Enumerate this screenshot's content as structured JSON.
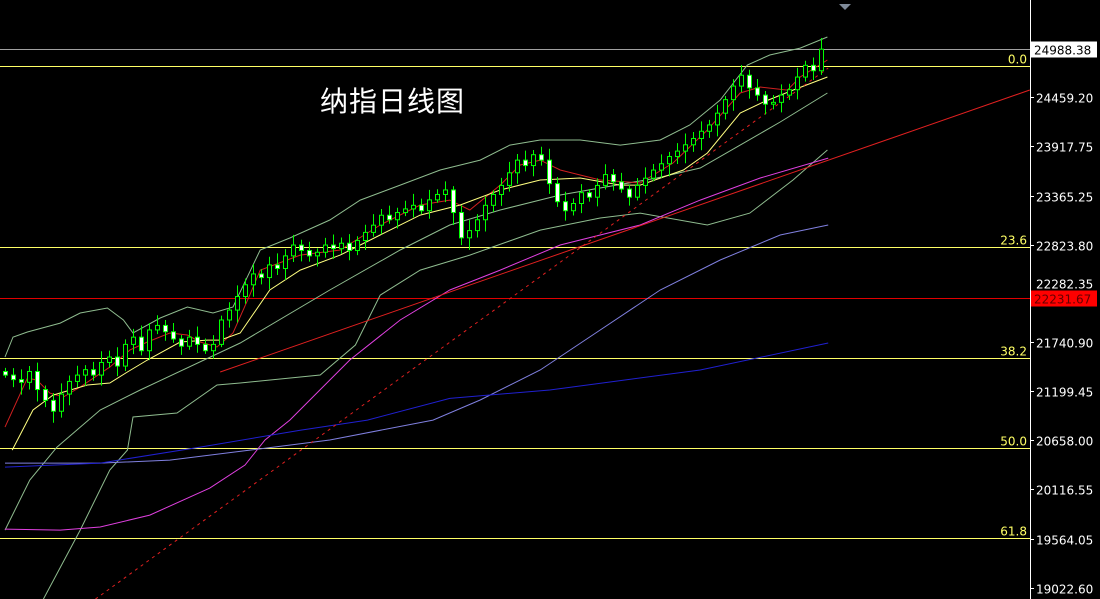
{
  "chart_data": {
    "type": "candlestick",
    "title": "纳指日线图",
    "yaxis": {
      "range": [
        19022.6,
        24988.38
      ],
      "ticks": [
        "24459.20",
        "23917.75",
        "23365.25",
        "22823.80",
        "22282.35",
        "21740.90",
        "21199.45",
        "20658.00",
        "20116.55",
        "19564.05",
        "19022.60"
      ],
      "tick_values": [
        24459.2,
        23917.75,
        23365.25,
        22823.8,
        22282.35,
        21740.9,
        21199.45,
        20658.0,
        20116.55,
        19564.05,
        19022.6
      ],
      "position": "right"
    },
    "grid": false,
    "colors": {
      "background": "#000000",
      "candle_outline": "#00ff00",
      "bull_body": "#000000",
      "bear_body": "#ffffff",
      "fib": "#ffff66",
      "current_price_line": "#a0a0a0",
      "red_level": "#e00000",
      "axis": "#ffffff"
    },
    "first_open": 21420,
    "closes": [
      21380,
      21330,
      21300,
      21420,
      21220,
      21100,
      20980,
      21170,
      21310,
      21380,
      21440,
      21380,
      21520,
      21580,
      21480,
      21720,
      21800,
      21650,
      21880,
      21930,
      21860,
      21780,
      21700,
      21800,
      21720,
      21650,
      21720,
      21990,
      22100,
      22250,
      22380,
      22500,
      22460,
      22600,
      22560,
      22700,
      22820,
      22760,
      22700,
      22740,
      22820,
      22780,
      22840,
      22760,
      22870,
      22960,
      23040,
      23150,
      23100,
      23180,
      23220,
      23260,
      23200,
      23320,
      23380,
      23430,
      23180,
      22900,
      22980,
      23100,
      23260,
      23380,
      23480,
      23620,
      23760,
      23700,
      23820,
      23760,
      23500,
      23300,
      23200,
      23280,
      23400,
      23350,
      23480,
      23600,
      23520,
      23440,
      23350,
      23480,
      23560,
      23650,
      23720,
      23800,
      23860,
      23930,
      24000,
      24080,
      24150,
      24280,
      24430,
      24580,
      24700,
      24560,
      24480,
      24380,
      24400,
      24480,
      24540,
      24680,
      24810,
      24750,
      24988.38
    ],
    "current_price": {
      "value": 24988.38,
      "label": "24988.38"
    },
    "red_level": {
      "value": 22231.67,
      "label": "22231.67"
    },
    "fib_levels": [
      {
        "label": "0.0",
        "value": 24802
      },
      {
        "label": "23.6",
        "value": 22798
      },
      {
        "label": "38.2",
        "value": 21569
      },
      {
        "label": "50.0",
        "value": 20573
      },
      {
        "label": "61.8",
        "value": 19576
      }
    ],
    "indicators": [
      {
        "id": "bb-upper",
        "color": "#8fbc8f",
        "dash": false,
        "points": [
          [
            0,
            21580
          ],
          [
            1,
            21801
          ],
          [
            2.8,
            21857
          ],
          [
            6.9,
            21956
          ],
          [
            9.4,
            22067
          ],
          [
            12.8,
            22123
          ],
          [
            14.8,
            21990
          ],
          [
            16,
            21846
          ],
          [
            19.4,
            22012
          ],
          [
            22.8,
            22134
          ],
          [
            26,
            22067
          ],
          [
            28.5,
            22134
          ],
          [
            31.9,
            22765
          ],
          [
            35.6,
            22898
          ],
          [
            40.6,
            23097
          ],
          [
            44.4,
            23318
          ],
          [
            49.4,
            23484
          ],
          [
            54.4,
            23651
          ],
          [
            59.4,
            23761
          ],
          [
            63.1,
            23927
          ],
          [
            66.9,
            23983
          ],
          [
            71.9,
            23983
          ],
          [
            76.9,
            23927
          ],
          [
            81.9,
            23983
          ],
          [
            85.6,
            24149
          ],
          [
            89.4,
            24426
          ],
          [
            92.8,
            24813
          ],
          [
            95.6,
            24924
          ],
          [
            99.4,
            25001
          ],
          [
            102.8,
            25123
          ]
        ]
      },
      {
        "id": "bb-middle",
        "color": "#8fbc8f",
        "dash": false,
        "points": [
          [
            0,
            19664
          ],
          [
            3.1,
            20218
          ],
          [
            6.5,
            20583
          ],
          [
            11.9,
            20993
          ],
          [
            16.9,
            21215
          ],
          [
            29.4,
            21735
          ],
          [
            40.6,
            22322
          ],
          [
            49.4,
            22765
          ],
          [
            55.6,
            23042
          ],
          [
            61.9,
            23208
          ],
          [
            69.4,
            23374
          ],
          [
            81.5,
            23562
          ],
          [
            86.9,
            23673
          ],
          [
            91.9,
            23927
          ],
          [
            96.9,
            24182
          ],
          [
            102.8,
            24503
          ]
        ]
      },
      {
        "id": "bb-lower",
        "color": "#8fbc8f",
        "dash": false,
        "points": [
          [
            4.8,
            18900
          ],
          [
            9.4,
            19664
          ],
          [
            13.1,
            20329
          ],
          [
            15.3,
            20550
          ],
          [
            16,
            20916
          ],
          [
            21.5,
            20960
          ],
          [
            26.5,
            21270
          ],
          [
            29.4,
            21292
          ],
          [
            39.4,
            21381
          ],
          [
            43.8,
            21713
          ],
          [
            46.9,
            22266
          ],
          [
            51.9,
            22543
          ],
          [
            58.1,
            22709
          ],
          [
            66.9,
            22986
          ],
          [
            74.4,
            23119
          ],
          [
            79.4,
            23174
          ],
          [
            87.8,
            23042
          ],
          [
            93.1,
            23174
          ],
          [
            98.5,
            23540
          ],
          [
            102.8,
            23872
          ]
        ]
      },
      {
        "id": "ma-red",
        "color": "#d02020",
        "dash": false,
        "points": [
          [
            0,
            20804
          ],
          [
            2.8,
            21347
          ],
          [
            4,
            21325
          ],
          [
            5.6,
            21181
          ],
          [
            7.3,
            21137
          ],
          [
            9.4,
            21248
          ],
          [
            13.1,
            21469
          ],
          [
            15.6,
            21657
          ],
          [
            17.8,
            21746
          ],
          [
            20.6,
            21846
          ],
          [
            22.8,
            21824
          ],
          [
            24.4,
            21746
          ],
          [
            26.5,
            21691
          ],
          [
            28.5,
            21846
          ],
          [
            30.6,
            22266
          ],
          [
            31.9,
            22543
          ],
          [
            36.9,
            22709
          ],
          [
            41.9,
            22765
          ],
          [
            46.9,
            23042
          ],
          [
            51.9,
            23263
          ],
          [
            55.6,
            23318
          ],
          [
            58.1,
            23208
          ],
          [
            61.9,
            23484
          ],
          [
            64.4,
            23706
          ],
          [
            66.9,
            23761
          ],
          [
            69.4,
            23651
          ],
          [
            74.4,
            23540
          ],
          [
            79.4,
            23507
          ],
          [
            83.5,
            23728
          ],
          [
            87.8,
            24094
          ],
          [
            91.9,
            24503
          ],
          [
            94.4,
            24570
          ],
          [
            97.8,
            24536
          ],
          [
            99.4,
            24681
          ],
          [
            102.8,
            24869
          ]
        ]
      },
      {
        "id": "ma-yellow",
        "color": "#ffff80",
        "dash": false,
        "points": [
          [
            0.9,
            20550
          ],
          [
            3.5,
            20993
          ],
          [
            6,
            21159
          ],
          [
            10.3,
            21270
          ],
          [
            13.1,
            21292
          ],
          [
            15.3,
            21414
          ],
          [
            17.8,
            21547
          ],
          [
            21.9,
            21746
          ],
          [
            25.3,
            21768
          ],
          [
            26.9,
            21768
          ],
          [
            29.4,
            21846
          ],
          [
            33.1,
            22322
          ],
          [
            36.9,
            22543
          ],
          [
            41.9,
            22709
          ],
          [
            46.9,
            22931
          ],
          [
            51.9,
            23152
          ],
          [
            56.9,
            23263
          ],
          [
            61.9,
            23429
          ],
          [
            66.9,
            23540
          ],
          [
            71.9,
            23562
          ],
          [
            76.9,
            23484
          ],
          [
            79.4,
            23484
          ],
          [
            84.8,
            23651
          ],
          [
            87.8,
            23839
          ],
          [
            91.9,
            24282
          ],
          [
            94.8,
            24404
          ],
          [
            98.5,
            24536
          ],
          [
            102.8,
            24681
          ]
        ]
      },
      {
        "id": "ma-magenta",
        "color": "#e040e0",
        "dash": false,
        "points": [
          [
            0,
            19675
          ],
          [
            6.9,
            19664
          ],
          [
            11.9,
            19698
          ],
          [
            18.1,
            19830
          ],
          [
            25.6,
            20129
          ],
          [
            30,
            20384
          ],
          [
            32.5,
            20661
          ],
          [
            35.6,
            20882
          ],
          [
            43.1,
            21547
          ],
          [
            49.4,
            21990
          ],
          [
            55.6,
            22322
          ],
          [
            61.9,
            22543
          ],
          [
            69.4,
            22820
          ],
          [
            79.4,
            23042
          ],
          [
            86.9,
            23318
          ],
          [
            94.4,
            23562
          ],
          [
            102.9,
            23783
          ]
        ]
      },
      {
        "id": "ma-lavender",
        "color": "#8080e0",
        "dash": false,
        "points": [
          [
            0,
            20406
          ],
          [
            11.9,
            20406
          ],
          [
            20.6,
            20439
          ],
          [
            30.6,
            20550
          ],
          [
            40.6,
            20661
          ],
          [
            53.5,
            20882
          ],
          [
            59.4,
            21104
          ],
          [
            66.9,
            21436
          ],
          [
            74.4,
            21879
          ],
          [
            81.9,
            22322
          ],
          [
            89.4,
            22654
          ],
          [
            96.9,
            22931
          ],
          [
            102.9,
            23042
          ]
        ]
      },
      {
        "id": "ma-blue",
        "color": "#2020d0",
        "dash": false,
        "points": [
          [
            0,
            20361
          ],
          [
            11.9,
            20406
          ],
          [
            24.4,
            20583
          ],
          [
            36.9,
            20770
          ],
          [
            45.3,
            20882
          ],
          [
            55.6,
            21122
          ],
          [
            68.1,
            21215
          ],
          [
            86.9,
            21436
          ],
          [
            102.9,
            21735
          ]
        ]
      },
      {
        "id": "trendline-red",
        "color": "#e02020",
        "dash": false,
        "points": [
          [
            26.9,
            21414
          ],
          [
            128.1,
            24537
          ]
        ]
      },
      {
        "id": "trendline-red-dashed",
        "color": "#e02020",
        "dash": true,
        "points": [
          [
            11.3,
            18900
          ],
          [
            102.9,
            24780
          ]
        ]
      }
    ]
  }
}
